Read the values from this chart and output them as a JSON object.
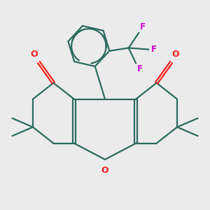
{
  "bg_color": "#ebebeb",
  "bond_color": "#2d6b5e",
  "oxygen_color": "#ff2020",
  "fluorine_color": "#cc00cc",
  "line_width": 1.6,
  "fig_size": [
    3.0,
    3.0
  ],
  "dpi": 100,
  "xlim": [
    -3.5,
    3.5
  ],
  "ylim": [
    -3.0,
    3.2
  ]
}
